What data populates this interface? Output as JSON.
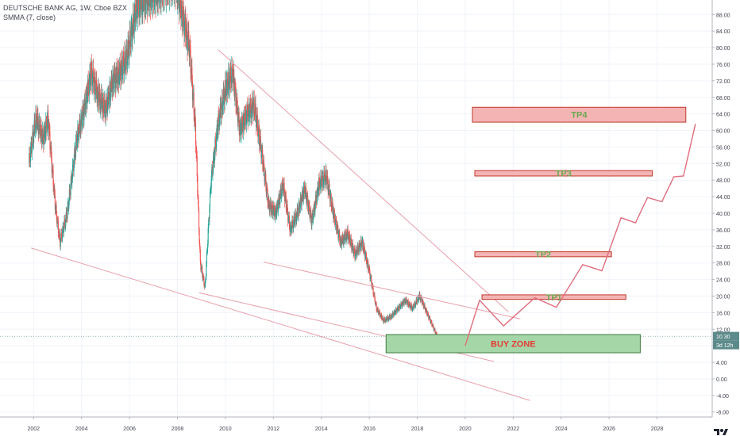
{
  "header": {
    "symbol_line": "DEUTSCHE BANK AG, 1W, Cboe BZX",
    "indicator_line": "SMMA (7, close)"
  },
  "price_tags": {
    "last_price": "10.30",
    "countdown": "3d 12h"
  },
  "zones": [
    {
      "label": "BUY ZONE",
      "low": 6.3,
      "high": 10.7,
      "x_from": 2016.7,
      "x_to": 2027.3,
      "fill": "#a5d6a7",
      "text": "#e53935"
    },
    {
      "label": "TP1",
      "low": 19.2,
      "high": 20.3,
      "x_from": 2020.7,
      "x_to": 2026.7,
      "fill": "#f4b4b4",
      "text": "#6aa84f"
    },
    {
      "label": "TP2",
      "low": 29.5,
      "high": 30.7,
      "x_from": 2020.4,
      "x_to": 2026.1,
      "fill": "#f4b4b4",
      "text": "#6aa84f"
    },
    {
      "label": "TP3",
      "low": 49.0,
      "high": 50.3,
      "x_from": 2020.4,
      "x_to": 2027.8,
      "fill": "#f4b4b4",
      "text": "#6aa84f"
    },
    {
      "label": "TP4",
      "low": 62.0,
      "high": 65.6,
      "x_from": 2020.3,
      "x_to": 2029.2,
      "fill": "#f4b4b4",
      "text": "#6aa84f"
    }
  ],
  "colors": {
    "up": "#26a69a",
    "down": "#ef5350",
    "projection": "#e06c7d",
    "trendline": "#e8a0ab",
    "last_price": "#5c8a8a"
  },
  "chart_data": {
    "type": "candlestick",
    "title": "DEUTSCHE BANK AG, 1W, Cboe BZX",
    "indicator": "SMMA (7, close)",
    "xlim": [
      2000.6,
      2030.3
    ],
    "ylim": [
      -9.2,
      91.5
    ],
    "x_ticks": [
      2002,
      2004,
      2006,
      2008,
      2010,
      2012,
      2014,
      2016,
      2018,
      2020,
      2022,
      2024,
      2026,
      2028
    ],
    "y_ticks": [
      "88.00",
      "84.00",
      "80.00",
      "76.00",
      "72.00",
      "68.00",
      "64.00",
      "60.00",
      "56.00",
      "52.00",
      "48.00",
      "44.00",
      "40.00",
      "36.00",
      "32.00",
      "28.00",
      "24.00",
      "20.00",
      "16.00",
      "12.00",
      "8.00",
      "4.00",
      "0.00",
      "-4.00",
      "-8.00"
    ],
    "price_path": [
      [
        2001.8,
        52
      ],
      [
        2002.1,
        63
      ],
      [
        2002.4,
        58
      ],
      [
        2002.6,
        63
      ],
      [
        2002.9,
        42
      ],
      [
        2003.1,
        33
      ],
      [
        2003.4,
        40
      ],
      [
        2003.8,
        58
      ],
      [
        2004.1,
        65
      ],
      [
        2004.4,
        74
      ],
      [
        2004.7,
        68
      ],
      [
        2005.0,
        65
      ],
      [
        2005.3,
        72
      ],
      [
        2005.6,
        74
      ],
      [
        2005.9,
        78
      ],
      [
        2006.3,
        90
      ],
      [
        2006.7,
        92
      ],
      [
        2007.3,
        94
      ],
      [
        2007.9,
        96
      ],
      [
        2008.2,
        88
      ],
      [
        2008.5,
        80
      ],
      [
        2008.75,
        60
      ],
      [
        2008.95,
        28
      ],
      [
        2009.15,
        22
      ],
      [
        2009.4,
        48
      ],
      [
        2009.7,
        62
      ],
      [
        2010.0,
        70
      ],
      [
        2010.3,
        74
      ],
      [
        2010.6,
        60
      ],
      [
        2010.9,
        64
      ],
      [
        2011.2,
        66
      ],
      [
        2011.5,
        55
      ],
      [
        2011.8,
        42
      ],
      [
        2012.1,
        40
      ],
      [
        2012.4,
        47
      ],
      [
        2012.7,
        36
      ],
      [
        2013.0,
        40
      ],
      [
        2013.3,
        46
      ],
      [
        2013.6,
        38
      ],
      [
        2013.9,
        47
      ],
      [
        2014.2,
        49
      ],
      [
        2014.5,
        40
      ],
      [
        2014.8,
        33
      ],
      [
        2015.1,
        35
      ],
      [
        2015.4,
        30
      ],
      [
        2015.7,
        33
      ],
      [
        2016.0,
        26
      ],
      [
        2016.3,
        17
      ],
      [
        2016.6,
        14
      ],
      [
        2016.9,
        15
      ],
      [
        2017.2,
        17
      ],
      [
        2017.5,
        19
      ],
      [
        2017.8,
        17
      ],
      [
        2018.1,
        20
      ],
      [
        2018.4,
        16
      ],
      [
        2018.7,
        12
      ],
      [
        2019.0,
        8
      ],
      [
        2019.3,
        8.5
      ],
      [
        2019.6,
        7
      ],
      [
        2019.9,
        8.5
      ],
      [
        2020.0,
        10.3
      ]
    ],
    "projection_path": [
      [
        2020.0,
        8.0
      ],
      [
        2020.6,
        19.0
      ],
      [
        2021.6,
        12.8
      ],
      [
        2022.9,
        19.6
      ],
      [
        2023.8,
        17.3
      ],
      [
        2024.9,
        27.6
      ],
      [
        2025.7,
        26.1
      ],
      [
        2026.5,
        38.9
      ],
      [
        2027.1,
        37.7
      ],
      [
        2027.6,
        43.8
      ],
      [
        2028.2,
        42.8
      ],
      [
        2028.7,
        48.8
      ],
      [
        2029.1,
        49.0
      ],
      [
        2029.6,
        61.6
      ]
    ],
    "trendlines": [
      {
        "p1": [
          2009.7,
          79.5
        ],
        "p2": [
          2021.8,
          16.2
        ]
      },
      {
        "p1": [
          2001.9,
          31.6
        ],
        "p2": [
          2022.7,
          -5.2
        ]
      },
      {
        "p1": [
          2008.9,
          20.8
        ],
        "p2": [
          2021.2,
          4.2
        ]
      },
      {
        "p1": [
          2011.6,
          28.2
        ],
        "p2": [
          2022.3,
          14.5
        ]
      }
    ],
    "last_price": 10.3,
    "grid": true
  }
}
